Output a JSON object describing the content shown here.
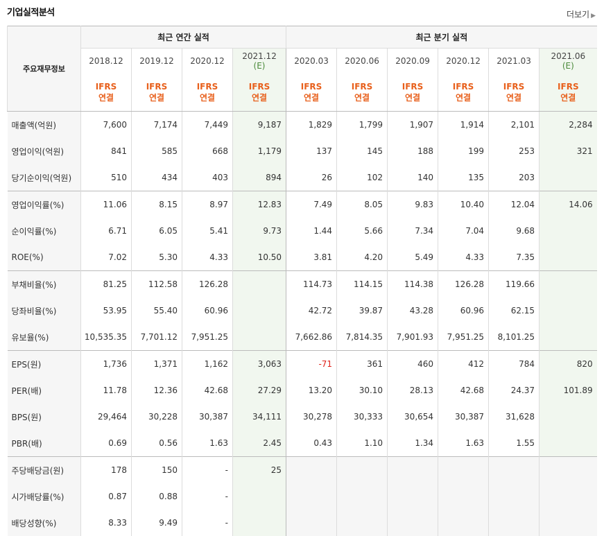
{
  "header": {
    "title": "기업실적분석",
    "more_label": "더보기"
  },
  "table": {
    "row_header": "주요재무정보",
    "groups": [
      "최근 연간 실적",
      "최근 분기 실적"
    ],
    "periods": [
      {
        "label": "2018.12",
        "est": ""
      },
      {
        "label": "2019.12",
        "est": ""
      },
      {
        "label": "2020.12",
        "est": ""
      },
      {
        "label": "2021.12",
        "est": "(E)"
      },
      {
        "label": "2020.03",
        "est": ""
      },
      {
        "label": "2020.06",
        "est": ""
      },
      {
        "label": "2020.09",
        "est": ""
      },
      {
        "label": "2020.12",
        "est": ""
      },
      {
        "label": "2021.03",
        "est": ""
      },
      {
        "label": "2021.06",
        "est": "(E)"
      }
    ],
    "standard": {
      "line1": "IFRS",
      "line2": "연결"
    },
    "rows": [
      {
        "label": "매출액(억원)",
        "values": [
          "7,600",
          "7,174",
          "7,449",
          "9,187",
          "1,829",
          "1,799",
          "1,907",
          "1,914",
          "2,101",
          "2,284"
        ]
      },
      {
        "label": "영업이익(억원)",
        "values": [
          "841",
          "585",
          "668",
          "1,179",
          "137",
          "145",
          "188",
          "199",
          "253",
          "321"
        ]
      },
      {
        "label": "당기순이익(억원)",
        "values": [
          "510",
          "434",
          "403",
          "894",
          "26",
          "102",
          "140",
          "135",
          "203",
          ""
        ]
      },
      {
        "label": "영업이익률(%)",
        "values": [
          "11.06",
          "8.15",
          "8.97",
          "12.83",
          "7.49",
          "8.05",
          "9.83",
          "10.40",
          "12.04",
          "14.06"
        ]
      },
      {
        "label": "순이익률(%)",
        "values": [
          "6.71",
          "6.05",
          "5.41",
          "9.73",
          "1.44",
          "5.66",
          "7.34",
          "7.04",
          "9.68",
          ""
        ]
      },
      {
        "label": "ROE(%)",
        "values": [
          "7.02",
          "5.30",
          "4.33",
          "10.50",
          "3.81",
          "4.20",
          "5.49",
          "4.33",
          "7.35",
          ""
        ]
      },
      {
        "label": "부채비율(%)",
        "values": [
          "81.25",
          "112.58",
          "126.28",
          "",
          "114.73",
          "114.15",
          "114.38",
          "126.28",
          "119.66",
          ""
        ]
      },
      {
        "label": "당좌비율(%)",
        "values": [
          "53.95",
          "55.40",
          "60.96",
          "",
          "42.72",
          "39.87",
          "43.28",
          "60.96",
          "62.15",
          ""
        ]
      },
      {
        "label": "유보율(%)",
        "values": [
          "10,535.35",
          "7,701.12",
          "7,951.25",
          "",
          "7,662.86",
          "7,814.35",
          "7,901.93",
          "7,951.25",
          "8,101.25",
          ""
        ]
      },
      {
        "label": "EPS(원)",
        "values": [
          "1,736",
          "1,371",
          "1,162",
          "3,063",
          "-71",
          "361",
          "460",
          "412",
          "784",
          "820"
        ]
      },
      {
        "label": "PER(배)",
        "values": [
          "11.78",
          "12.36",
          "42.68",
          "27.29",
          "13.20",
          "30.10",
          "28.13",
          "42.68",
          "24.37",
          "101.89"
        ]
      },
      {
        "label": "BPS(원)",
        "values": [
          "29,464",
          "30,228",
          "30,387",
          "34,111",
          "30,278",
          "30,333",
          "30,654",
          "30,387",
          "31,628",
          ""
        ]
      },
      {
        "label": "PBR(배)",
        "values": [
          "0.69",
          "0.56",
          "1.63",
          "2.45",
          "0.43",
          "1.10",
          "1.34",
          "1.63",
          "1.55",
          ""
        ]
      },
      {
        "label": "주당배당금(원)",
        "values": [
          "178",
          "150",
          "-",
          "25",
          "",
          "",
          "",
          "",
          "",
          ""
        ]
      },
      {
        "label": "시가배당률(%)",
        "values": [
          "0.87",
          "0.88",
          "-",
          "",
          "",
          "",
          "",
          "",
          "",
          ""
        ]
      },
      {
        "label": "배당성향(%)",
        "values": [
          "8.33",
          "9.49",
          "-",
          "",
          "",
          "",
          "",
          "",
          "",
          ""
        ]
      }
    ]
  },
  "colors": {
    "ifrs": "#e8601c",
    "estimate_bg": "#f1f7ef",
    "negative": "#e0221a"
  }
}
